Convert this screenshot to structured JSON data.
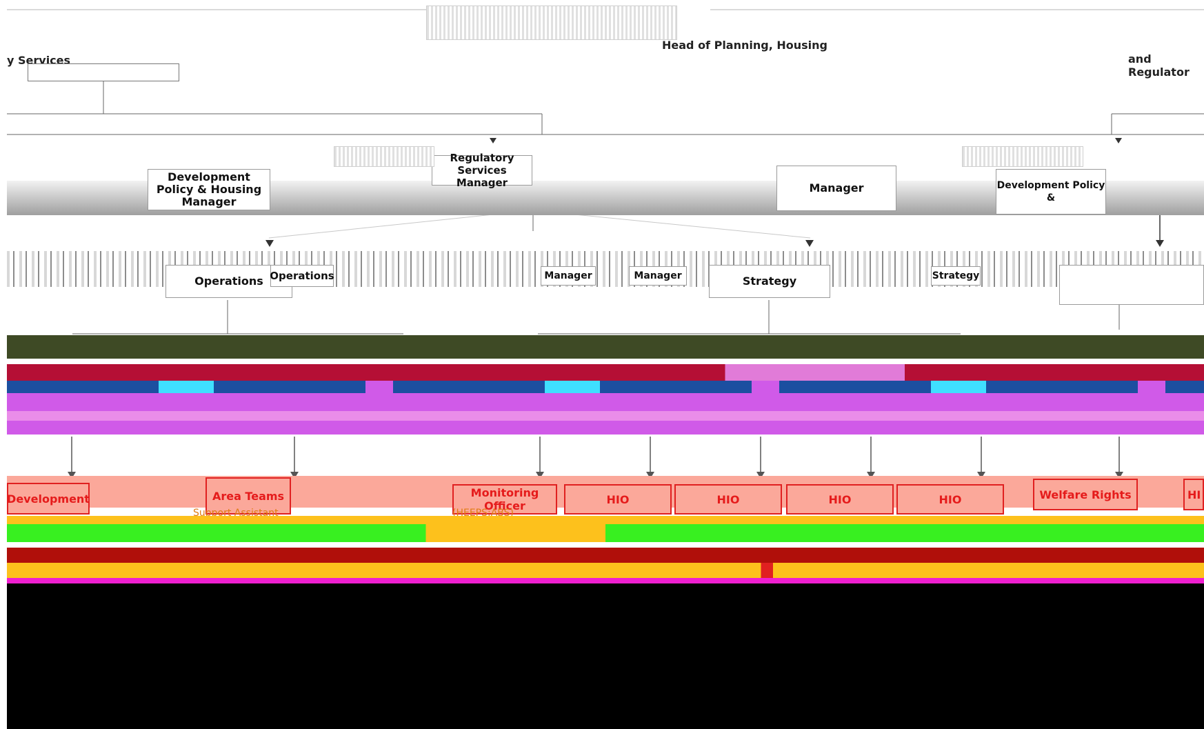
{
  "top": {
    "head_of_planning": "Head of Planning, Housing",
    "left_fragment": "y Services",
    "right_fragment": "and Regulator"
  },
  "level2": {
    "dev_policy_housing_manager": "Development Policy & Housing Manager",
    "regulatory_services_manager": "Regulatory Services Manager",
    "right_fragment_manager": "Manager",
    "right_fragment_dev_policy": "Development Policy &"
  },
  "level3": {
    "operations_a": "Operations",
    "operations_b": "Operations",
    "manager_a": "Manager",
    "manager_b": "Manager",
    "strategy_a": "Strategy",
    "strategy_b": "Strategy"
  },
  "bottom_row": {
    "development": "Development",
    "area_teams": "Area Teams",
    "support_assistant": "Support Assistant",
    "monitoring_officer": "Monitoring Officer",
    "heeps_abs": "(HEEPS:ABS)",
    "hio": "HIO",
    "welfare_rights": "Welfare Rights",
    "hi": "HI"
  },
  "colors": {
    "olive_band": "#3e4a25",
    "magenta": "#d05ae8",
    "blue": "#1c4fa0",
    "cyan": "#3fe0ff",
    "crimson": "#b50f35",
    "salmon": "#fba89a",
    "red_border": "#e02020",
    "green": "#38f020",
    "gold": "#fdc11c",
    "dark_red": "#b00f0a",
    "black": "#000000"
  }
}
